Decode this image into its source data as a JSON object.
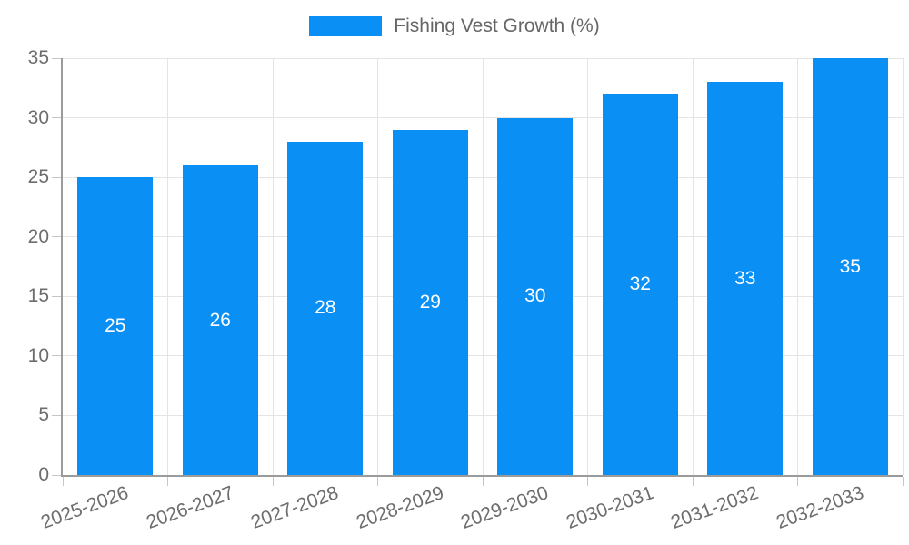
{
  "chart_data": {
    "type": "bar",
    "title": "",
    "categories": [
      "2025-2026",
      "2026-2027",
      "2027-2028",
      "2028-2029",
      "2029-2030",
      "2030-2031",
      "2031-2032",
      "2032-2033"
    ],
    "series": [
      {
        "name": "Fishing Vest Growth (%)",
        "color": "#0A8FF5",
        "values": [
          25,
          26,
          28,
          29,
          30,
          32,
          33,
          35
        ]
      }
    ],
    "xlabel": "",
    "ylabel": "",
    "ylim": [
      0,
      35
    ],
    "yticks": [
      0,
      5,
      10,
      15,
      20,
      25,
      30,
      35
    ],
    "grid": "on",
    "legend_position": "top-center",
    "x_label_rotation_deg": -20,
    "bar_label_color": "#ffffff",
    "grid_color": "#e4e4e4",
    "axis_color": "#9b9b9b",
    "tick_mark_color": "#c6c6c6",
    "tick_label_color": "#6d6d6d",
    "background_color": "#ffffff"
  }
}
